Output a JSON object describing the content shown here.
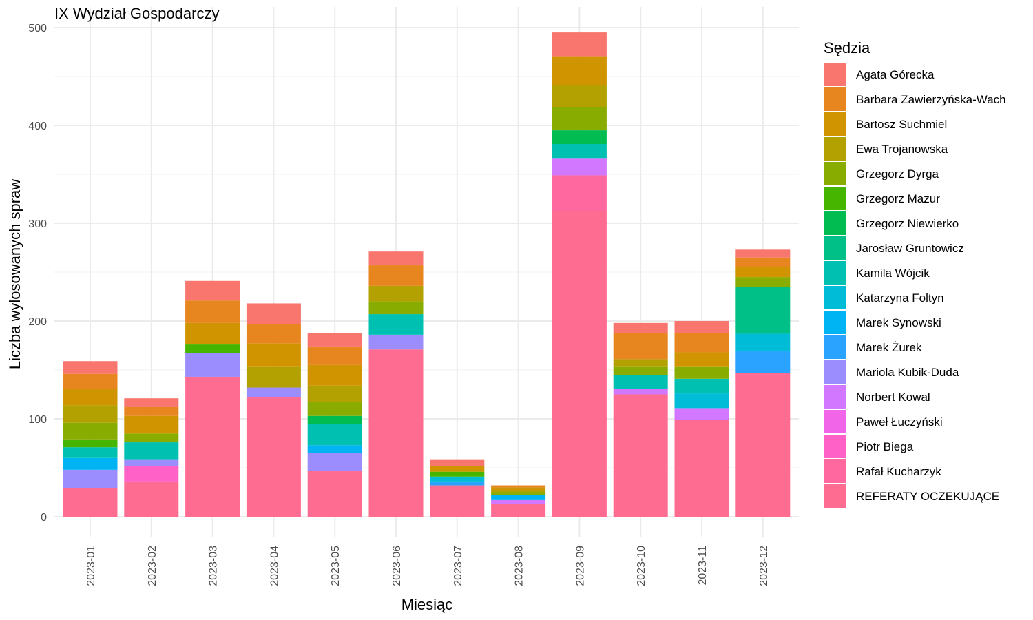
{
  "chart_data": {
    "type": "bar",
    "stacked": true,
    "title": "IX Wydział Gospodarczy",
    "xlabel": "Miesiąc",
    "ylabel": "Liczba wylosowanych spraw",
    "ylim": [
      0,
      500
    ],
    "yticks": [
      0,
      100,
      200,
      300,
      400,
      500
    ],
    "grid": true,
    "legend_title": "Sędzia",
    "legend_position": "right",
    "categories": [
      "2023-01",
      "2023-02",
      "2023-03",
      "2023-04",
      "2023-05",
      "2023-06",
      "2023-07",
      "2023-08",
      "2023-09",
      "2023-10",
      "2023-11",
      "2023-12"
    ],
    "series": [
      {
        "name": "Agata Górecka",
        "color": "#F8766D",
        "values": [
          13,
          9,
          20,
          21,
          14,
          14,
          6,
          0,
          25,
          10,
          12,
          8
        ]
      },
      {
        "name": "Barbara Zawierzyńska-Wach",
        "color": "#E7851E",
        "values": [
          15,
          9,
          23,
          20,
          19,
          21,
          0,
          2,
          0,
          27,
          20,
          10
        ]
      },
      {
        "name": "Bartosz Suchmiel",
        "color": "#D09400",
        "values": [
          17,
          18,
          22,
          24,
          21,
          0,
          6,
          3,
          29,
          0,
          15,
          10
        ]
      },
      {
        "name": "Ewa Trojanowska",
        "color": "#B2A100",
        "values": [
          18,
          0,
          0,
          21,
          17,
          16,
          0,
          2,
          22,
          8,
          0,
          0
        ]
      },
      {
        "name": "Grzegorz Dyrga",
        "color": "#89AC00",
        "values": [
          17,
          9,
          0,
          0,
          14,
          13,
          0,
          3,
          24,
          8,
          12,
          10
        ]
      },
      {
        "name": "Grzegorz Mazur",
        "color": "#45B500",
        "values": [
          8,
          0,
          9,
          0,
          0,
          0,
          5,
          0,
          0,
          0,
          0,
          0
        ]
      },
      {
        "name": "Grzegorz Niewierko",
        "color": "#00BC51",
        "values": [
          0,
          0,
          0,
          0,
          8,
          0,
          0,
          0,
          14,
          0,
          0,
          0
        ]
      },
      {
        "name": "Jarosław Gruntowicz",
        "color": "#00C087",
        "values": [
          0,
          0,
          0,
          0,
          0,
          0,
          0,
          0,
          0,
          0,
          0,
          48
        ]
      },
      {
        "name": "Kamila Wójcik",
        "color": "#00C0B2",
        "values": [
          11,
          18,
          0,
          0,
          22,
          21,
          0,
          0,
          15,
          14,
          15,
          0
        ]
      },
      {
        "name": "Katarzyna Foltyn",
        "color": "#00BCD6",
        "values": [
          0,
          0,
          0,
          0,
          0,
          0,
          5,
          0,
          0,
          0,
          15,
          18
        ]
      },
      {
        "name": "Marek Synowski",
        "color": "#00B3F2",
        "values": [
          12,
          0,
          0,
          0,
          8,
          0,
          0,
          5,
          0,
          0,
          0,
          0
        ]
      },
      {
        "name": "Marek Żurek",
        "color": "#29A3FF",
        "values": [
          0,
          0,
          0,
          0,
          0,
          0,
          4,
          0,
          0,
          0,
          0,
          22
        ]
      },
      {
        "name": "Mariola Kubik-Duda",
        "color": "#9C8DFF",
        "values": [
          19,
          6,
          24,
          10,
          18,
          15,
          0,
          0,
          0,
          0,
          0,
          0
        ]
      },
      {
        "name": "Norbert Kowal",
        "color": "#D277FF",
        "values": [
          0,
          0,
          0,
          0,
          0,
          0,
          0,
          4,
          17,
          6,
          12,
          0
        ]
      },
      {
        "name": "Paweł Łuczyński",
        "color": "#F166E8",
        "values": [
          0,
          0,
          0,
          0,
          0,
          0,
          0,
          0,
          0,
          0,
          0,
          0
        ]
      },
      {
        "name": "Piotr Biega",
        "color": "#FF61C7",
        "values": [
          0,
          16,
          0,
          0,
          0,
          0,
          0,
          0,
          0,
          0,
          0,
          0
        ]
      },
      {
        "name": "Rafał Kucharzyk",
        "color": "#FF689E",
        "values": [
          0,
          0,
          0,
          0,
          0,
          0,
          0,
          0,
          37,
          0,
          0,
          0
        ]
      },
      {
        "name": "REFERATY OCZEKUJĄCE",
        "color": "#FF6C91",
        "values": [
          29,
          36,
          143,
          122,
          47,
          171,
          32,
          13,
          312,
          125,
          99,
          147
        ]
      }
    ]
  }
}
